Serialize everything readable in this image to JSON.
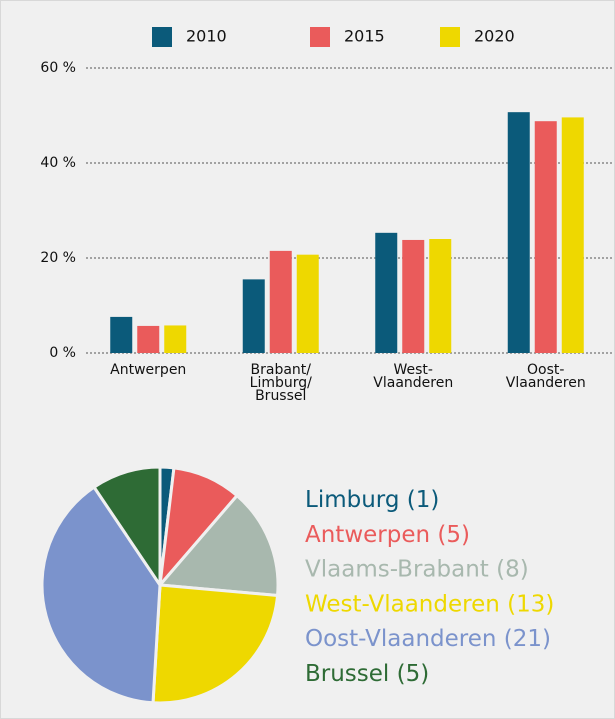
{
  "chart_data": [
    {
      "type": "bar",
      "categories": [
        "Antwerpen",
        "Brabant/\nLimburg/\nBrussel",
        "West-\nVlaanderen",
        "Oost-\nVlaanderen"
      ],
      "series": [
        {
          "name": "2010",
          "color": "#0b5a7a",
          "values": [
            7.6,
            15.5,
            25.3,
            50.7
          ]
        },
        {
          "name": "2015",
          "color": "#ea5b5b",
          "values": [
            5.7,
            21.5,
            23.8,
            48.8
          ]
        },
        {
          "name": "2020",
          "color": "#eed800",
          "values": [
            5.8,
            20.7,
            24,
            49.6
          ]
        }
      ],
      "ylim": [
        0,
        60
      ],
      "yticks": [
        {
          "value": 0,
          "label": "0 %"
        },
        {
          "value": 20,
          "label": "20 %"
        },
        {
          "value": 40,
          "label": "40 %"
        },
        {
          "value": 60,
          "label": "60 %"
        }
      ],
      "grid": true,
      "legend": "top"
    },
    {
      "type": "pie",
      "categories": [
        "Limburg",
        "Antwerpen",
        "Vlaams-Brabant",
        "West-Vlaanderen",
        "Oost-Vlaanderen",
        "Brussel"
      ],
      "values": [
        1,
        5,
        8,
        13,
        21,
        5
      ],
      "value_labels": [
        "(1)",
        "(5)",
        "(8)",
        "(13)",
        "(21)",
        "(5)"
      ],
      "colors": [
        "#0b5a7a",
        "#ea5b5b",
        "#a8b8ae",
        "#eed800",
        "#7b93cc",
        "#2e6b35"
      ],
      "legend": "right"
    }
  ]
}
